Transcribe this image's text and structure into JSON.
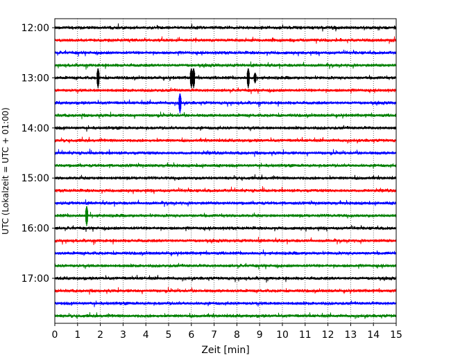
{
  "chart_data": {
    "type": "line",
    "title": "",
    "xlabel": "Zeit  [min]",
    "ylabel": "UTC (Lokalzeit = UTC + 01:00)",
    "xlim": [
      0,
      15
    ],
    "x_ticks": [
      "0",
      "1",
      "2",
      "3",
      "4",
      "5",
      "6",
      "7",
      "8",
      "9",
      "10",
      "11",
      "12",
      "13",
      "14",
      "15"
    ],
    "y_ticks": [
      "12:00",
      "13:00",
      "14:00",
      "15:00",
      "16:00",
      "17:00"
    ],
    "grid": "vertical dotted lines at each minute",
    "colors": [
      "#000000",
      "#ff0000",
      "#0000ff",
      "#008000"
    ],
    "trace_interval_min": 15,
    "traces": [
      {
        "start": "12:00",
        "color": "#000000"
      },
      {
        "start": "12:15",
        "color": "#ff0000"
      },
      {
        "start": "12:30",
        "color": "#0000ff"
      },
      {
        "start": "12:45",
        "color": "#008000"
      },
      {
        "start": "13:00",
        "color": "#000000"
      },
      {
        "start": "13:15",
        "color": "#ff0000"
      },
      {
        "start": "13:30",
        "color": "#0000ff"
      },
      {
        "start": "13:45",
        "color": "#008000"
      },
      {
        "start": "14:00",
        "color": "#000000"
      },
      {
        "start": "14:15",
        "color": "#ff0000"
      },
      {
        "start": "14:30",
        "color": "#0000ff"
      },
      {
        "start": "14:45",
        "color": "#008000"
      },
      {
        "start": "15:00",
        "color": "#000000"
      },
      {
        "start": "15:15",
        "color": "#ff0000"
      },
      {
        "start": "15:30",
        "color": "#0000ff"
      },
      {
        "start": "15:45",
        "color": "#008000"
      },
      {
        "start": "16:00",
        "color": "#000000"
      },
      {
        "start": "16:15",
        "color": "#ff0000"
      },
      {
        "start": "16:30",
        "color": "#0000ff"
      },
      {
        "start": "16:45",
        "color": "#008000"
      },
      {
        "start": "17:00",
        "color": "#000000"
      },
      {
        "start": "17:15",
        "color": "#ff0000"
      },
      {
        "start": "17:30",
        "color": "#0000ff"
      },
      {
        "start": "17:45",
        "color": "#008000"
      }
    ],
    "events": [
      {
        "trace": "13:00",
        "minute": 1.9,
        "amplitude": "large"
      },
      {
        "trace": "13:00",
        "minute": 6.0,
        "amplitude": "large"
      },
      {
        "trace": "13:00",
        "minute": 6.1,
        "amplitude": "large"
      },
      {
        "trace": "13:00",
        "minute": 8.5,
        "amplitude": "large"
      },
      {
        "trace": "13:00",
        "minute": 8.8,
        "amplitude": "medium"
      },
      {
        "trace": "13:30",
        "minute": 5.5,
        "amplitude": "large"
      },
      {
        "trace": "15:45",
        "minute": 1.4,
        "amplitude": "large"
      }
    ]
  }
}
